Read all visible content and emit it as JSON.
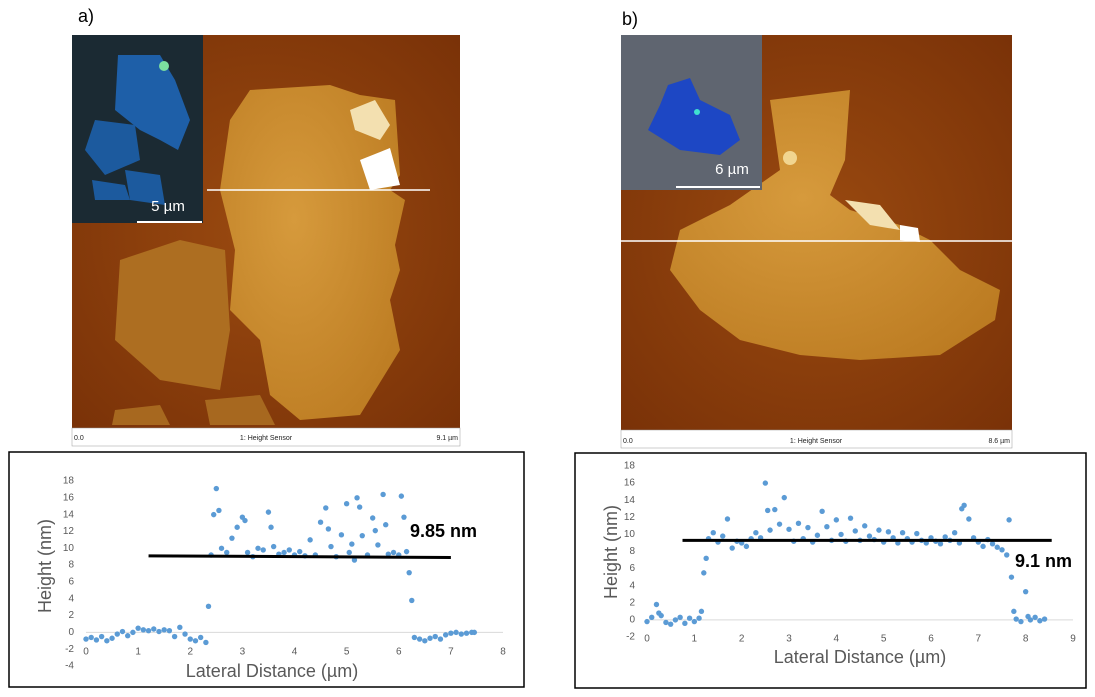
{
  "panels": [
    {
      "label": "a)",
      "scale_bar": "5 µm",
      "scan_axis": {
        "start": "0.0",
        "title": "1: Height Sensor",
        "end": "9.1 µm"
      }
    },
    {
      "label": "b)",
      "scale_bar": "6 µm",
      "scan_axis": {
        "start": "0.0",
        "title": "1: Height Sensor",
        "end": "8.6 µm"
      }
    }
  ],
  "chart_data": [
    {
      "type": "scatter",
      "xlabel": "Lateral Distance (µm)",
      "ylabel": "Height (nm)",
      "annotation": "9.85 nm",
      "color": "#5b9bd5",
      "xlim": [
        0,
        8
      ],
      "xticks": [
        0,
        1,
        2,
        3,
        4,
        5,
        6,
        7,
        8
      ],
      "ylim": [
        -4,
        18
      ],
      "yticks": [
        -4,
        -2,
        0,
        2,
        4,
        6,
        8,
        10,
        12,
        14,
        16,
        18
      ],
      "x": [
        0,
        0.1,
        0.2,
        0.3,
        0.4,
        0.5,
        0.6,
        0.7,
        0.8,
        0.9,
        1.0,
        1.1,
        1.2,
        1.3,
        1.4,
        1.5,
        1.6,
        1.7,
        1.8,
        1.9,
        2.0,
        2.1,
        2.2,
        2.3,
        2.35,
        2.4,
        2.45,
        2.5,
        2.55,
        2.6,
        2.7,
        2.8,
        2.9,
        3.0,
        3.05,
        3.1,
        3.2,
        3.3,
        3.4,
        3.5,
        3.55,
        3.6,
        3.7,
        3.8,
        3.9,
        4.0,
        4.1,
        4.2,
        4.3,
        4.4,
        4.5,
        4.6,
        4.65,
        4.7,
        4.8,
        4.9,
        5.0,
        5.05,
        5.1,
        5.15,
        5.2,
        5.25,
        5.3,
        5.4,
        5.5,
        5.55,
        5.6,
        5.7,
        5.75,
        5.8,
        5.9,
        6.0,
        6.05,
        6.1,
        6.15,
        6.2,
        6.25,
        6.3,
        6.4,
        6.5,
        6.6,
        6.7,
        6.8,
        6.9,
        7.0,
        7.1,
        7.2,
        7.3,
        7.4,
        7.45
      ],
      "values": [
        -0.8,
        -0.6,
        -0.9,
        -0.5,
        -1,
        -0.7,
        -0.2,
        0.1,
        -0.4,
        0,
        0.5,
        0.3,
        0.2,
        0.4,
        0.1,
        0.3,
        0.2,
        -0.5,
        0.6,
        -0.2,
        -0.8,
        -1,
        -0.6,
        -1.2,
        3.1,
        9.2,
        14.0,
        17.1,
        14.5,
        10,
        9.5,
        11.2,
        12.5,
        13.7,
        13.3,
        9.5,
        9.0,
        10,
        9.8,
        14.3,
        12.5,
        10.2,
        9.3,
        9.5,
        9.8,
        9.2,
        9.6,
        9.1,
        11,
        9.2,
        13.1,
        14.8,
        12.3,
        10.2,
        9,
        11.6,
        15.3,
        9.5,
        10.5,
        8.6,
        16.0,
        14.9,
        11.5,
        9.2,
        13.6,
        12.1,
        10.4,
        16.4,
        12.8,
        9.3,
        9.5,
        9.2,
        16.2,
        13.7,
        9.6,
        7.1,
        3.8,
        -0.6,
        -0.8,
        -1,
        -0.7,
        -0.5,
        -0.8,
        -0.3,
        -0.1,
        0,
        -0.2,
        -0.1,
        0,
        0
      ],
      "fit": {
        "color": "#000000",
        "x": [
          1.2,
          7.0
        ],
        "values": [
          9.1,
          8.9
        ]
      }
    },
    {
      "type": "scatter",
      "xlabel": "Lateral Distance (µm)",
      "ylabel": "Height (nm)",
      "annotation": "9.1 nm",
      "color": "#5b9bd5",
      "xlim": [
        0,
        9
      ],
      "xticks": [
        0,
        1,
        2,
        3,
        4,
        5,
        6,
        7,
        8,
        9
      ],
      "ylim": [
        -2,
        18
      ],
      "yticks": [
        -2,
        0,
        2,
        4,
        6,
        8,
        10,
        12,
        14,
        16,
        18
      ],
      "x": [
        0,
        0.1,
        0.2,
        0.25,
        0.3,
        0.4,
        0.5,
        0.6,
        0.7,
        0.8,
        0.9,
        1.0,
        1.1,
        1.15,
        1.2,
        1.25,
        1.3,
        1.4,
        1.5,
        1.6,
        1.7,
        1.8,
        1.9,
        2.0,
        2.1,
        2.2,
        2.3,
        2.4,
        2.5,
        2.55,
        2.6,
        2.7,
        2.8,
        2.9,
        3.0,
        3.1,
        3.2,
        3.3,
        3.4,
        3.5,
        3.6,
        3.7,
        3.8,
        3.9,
        4.0,
        4.1,
        4.2,
        4.3,
        4.4,
        4.5,
        4.6,
        4.7,
        4.8,
        4.9,
        5.0,
        5.1,
        5.2,
        5.3,
        5.4,
        5.5,
        5.6,
        5.7,
        5.8,
        5.9,
        6.0,
        6.1,
        6.2,
        6.3,
        6.4,
        6.5,
        6.6,
        6.65,
        6.7,
        6.8,
        6.9,
        7.0,
        7.1,
        7.2,
        7.3,
        7.4,
        7.5,
        7.6,
        7.65,
        7.7,
        7.75,
        7.8,
        7.9,
        8.0,
        8.05,
        8.1,
        8.2,
        8.3,
        8.4
      ],
      "values": [
        -0.2,
        0.3,
        1.8,
        0.8,
        0.5,
        -0.3,
        -0.5,
        0,
        0.3,
        -0.4,
        0.2,
        -0.2,
        0.2,
        1.0,
        5.5,
        7.2,
        9.5,
        10.2,
        9.1,
        9.8,
        11.8,
        8.4,
        9.2,
        9.0,
        8.6,
        9.5,
        10.2,
        9.6,
        16.0,
        12.8,
        10.5,
        12.9,
        11.2,
        14.3,
        10.6,
        9.2,
        11.3,
        9.5,
        10.8,
        9.1,
        9.9,
        12.7,
        10.9,
        9.3,
        11.7,
        10.0,
        9.2,
        11.9,
        10.4,
        9.3,
        11.0,
        9.8,
        9.4,
        10.5,
        9.1,
        10.3,
        9.6,
        9.0,
        10.2,
        9.5,
        9.1,
        10.1,
        9.3,
        9.0,
        9.6,
        9.2,
        8.9,
        9.7,
        9.3,
        10.2,
        9.0,
        13.0,
        13.4,
        11.8,
        9.6,
        9.1,
        8.6,
        9.4,
        8.9,
        8.5,
        8.2,
        7.6,
        11.7,
        5.0,
        1.0,
        0.1,
        -0.2,
        3.3,
        0.4,
        0.0,
        0.3,
        -0.1,
        0.1
      ],
      "fit": {
        "color": "#000000",
        "x": [
          0.75,
          8.55
        ],
        "values": [
          9.3,
          9.3
        ]
      }
    }
  ]
}
